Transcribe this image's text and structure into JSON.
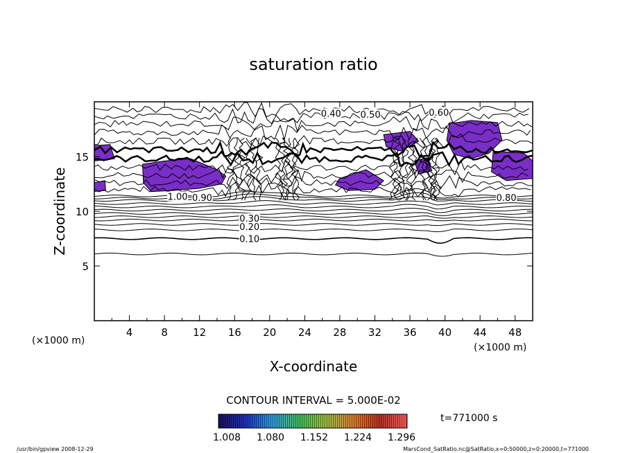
{
  "chart_data": {
    "type": "contour",
    "title": "saturation ratio",
    "xlabel": "X-coordinate",
    "ylabel": "Z-coordinate",
    "x_unit": "(×1000 m)",
    "y_unit": "(×1000 m)",
    "xlim": [
      0,
      50
    ],
    "ylim": [
      0,
      20
    ],
    "xticks": [
      4,
      8,
      12,
      16,
      20,
      24,
      28,
      32,
      36,
      40,
      44,
      48
    ],
    "yticks": [
      5,
      10,
      15
    ],
    "contour_interval_text": "CONTOUR INTERVAL = 5.000E-02",
    "contour_labels": [
      "0.10",
      "0.20",
      "0.30",
      "0.40",
      "0.50",
      "0.60",
      "0.80",
      "0.90",
      "1.00"
    ],
    "colorbar": {
      "ticks": [
        "1.008",
        "1.080",
        "1.152",
        "1.224",
        "1.296"
      ],
      "colors": [
        "#1a1060",
        "#2030c0",
        "#30a0e0",
        "#40c060",
        "#a0c040",
        "#e08030",
        "#c03020",
        "#ff6060"
      ]
    },
    "fill_color": "#7a2ec8",
    "time_label": "t=771000 s",
    "footer_left": "/usr/bin/gpview   2008-12-29",
    "footer_right": "MarsCond_SatRatio.nc@SatRatio,x=0:50000,z=0:20000,t=771000"
  }
}
